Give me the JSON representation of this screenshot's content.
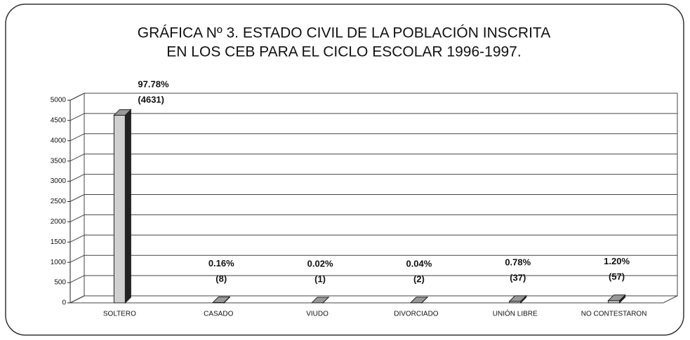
{
  "chart_data": {
    "type": "bar3d",
    "title_lines": [
      "GRÁFICA Nº 3. ESTADO CIVIL DE LA POBLACIÓN INSCRITA",
      "EN LOS CEB PARA EL CICLO ESCOLAR 1996-1997."
    ],
    "categories": [
      "SOLTERO",
      "CASADO",
      "VIUDO",
      "DIVORCIADO",
      "UNIÓN LIBRE",
      "NO CONTESTARON"
    ],
    "values": [
      4631,
      8,
      1,
      2,
      37,
      57
    ],
    "value_labels": [
      "(4631)",
      "(8)",
      "(1)",
      "(2)",
      "(37)",
      "(57)"
    ],
    "percent_labels": [
      "97.78%",
      "0.16%",
      "0.02%",
      "0.04%",
      "0.78%",
      "1.20%"
    ],
    "color": "#d0d0d0",
    "ylim": [
      0,
      5000
    ],
    "yticks": [
      0,
      500,
      1000,
      1500,
      2000,
      2500,
      3000,
      3500,
      4000,
      4500,
      5000
    ],
    "grid": true
  }
}
